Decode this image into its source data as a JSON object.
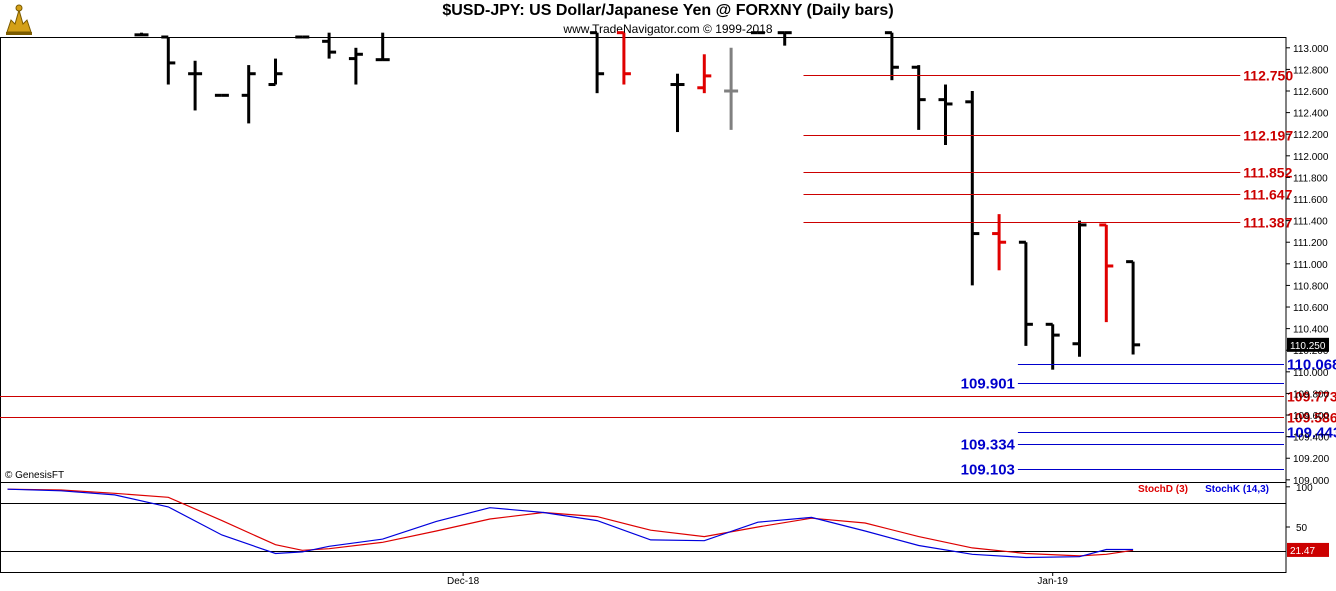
{
  "header": {
    "title": "$USD-JPY:  US Dollar/Japanese Yen @ FORXNY  (Daily bars)",
    "subtitle": "www.TradeNavigator.com © 1999-2018",
    "logo_icon": "trade-navigator-bull-logo"
  },
  "copyright": "© GenesisFT",
  "colors": {
    "up_bar": "#000000",
    "down_bar": "#e00000",
    "neutral_bar": "#808080",
    "resistance": "#cc0000",
    "support": "#0000cc",
    "stoch_d": "#dd0000",
    "stoch_k": "#0000dd",
    "grid": "#000000"
  },
  "chart_data": [
    {
      "type": "ohlc",
      "title": "$USD-JPY:  US Dollar/Japanese Yen @ FORXNY  (Daily bars)",
      "ylim": [
        108.98,
        113.1
      ],
      "y_ticks": [
        "113.000",
        "112.800",
        "112.600",
        "112.400",
        "112.200",
        "112.000",
        "111.800",
        "111.600",
        "111.400",
        "111.200",
        "111.000",
        "110.800",
        "110.600",
        "110.400",
        "110.200",
        "110.000",
        "109.800",
        "109.600",
        "109.400",
        "109.200",
        "109.000"
      ],
      "last_price": "110.250",
      "x_labels": [
        {
          "label": "Dec-18",
          "index": 17
        },
        {
          "label": "Jan-19",
          "index": 39
        }
      ],
      "bars": [
        {
          "i": 5,
          "open": 113.12,
          "high": 113.14,
          "low": 113.12,
          "close": 113.12,
          "color": "up"
        },
        {
          "i": 6,
          "open": 113.1,
          "high": 113.1,
          "low": 112.66,
          "close": 112.86,
          "color": "up"
        },
        {
          "i": 7,
          "open": 112.76,
          "high": 112.88,
          "low": 112.42,
          "close": 112.76,
          "color": "up"
        },
        {
          "i": 8,
          "open": 112.56,
          "high": 112.56,
          "low": 112.56,
          "close": 112.56,
          "color": "up"
        },
        {
          "i": 9,
          "open": 112.56,
          "high": 112.84,
          "low": 112.3,
          "close": 112.76,
          "color": "up"
        },
        {
          "i": 10,
          "open": 112.66,
          "high": 112.9,
          "low": 112.66,
          "close": 112.76,
          "color": "up"
        },
        {
          "i": 11,
          "open": 113.1,
          "high": 113.1,
          "low": 113.1,
          "close": 113.1,
          "color": "up"
        },
        {
          "i": 12,
          "open": 113.06,
          "high": 113.14,
          "low": 112.9,
          "close": 112.96,
          "color": "up"
        },
        {
          "i": 13,
          "open": 112.9,
          "high": 113.0,
          "low": 112.66,
          "close": 112.94,
          "color": "up"
        },
        {
          "i": 14,
          "open": 112.89,
          "high": 113.14,
          "low": 112.88,
          "close": 112.89,
          "color": "up"
        },
        {
          "i": 22,
          "open": 113.14,
          "high": 113.14,
          "low": 112.58,
          "close": 112.76,
          "color": "up"
        },
        {
          "i": 23,
          "open": 113.14,
          "high": 113.14,
          "low": 112.66,
          "close": 112.76,
          "color": "down"
        },
        {
          "i": 25,
          "open": 112.66,
          "high": 112.76,
          "low": 112.22,
          "close": 112.66,
          "color": "up"
        },
        {
          "i": 26,
          "open": 112.63,
          "high": 112.94,
          "low": 112.58,
          "close": 112.74,
          "color": "down"
        },
        {
          "i": 27,
          "open": 112.6,
          "high": 113.0,
          "low": 112.24,
          "close": 112.6,
          "color": "neutral"
        },
        {
          "i": 28,
          "open": 113.14,
          "high": 113.14,
          "low": 113.14,
          "close": 113.14,
          "color": "up"
        },
        {
          "i": 29,
          "open": 113.14,
          "high": 113.14,
          "low": 113.02,
          "close": 113.14,
          "color": "up"
        },
        {
          "i": 33,
          "open": 113.14,
          "high": 113.14,
          "low": 112.7,
          "close": 112.82,
          "color": "up"
        },
        {
          "i": 34,
          "open": 112.82,
          "high": 112.84,
          "low": 112.24,
          "close": 112.52,
          "color": "up"
        },
        {
          "i": 35,
          "open": 112.52,
          "high": 112.66,
          "low": 112.1,
          "close": 112.48,
          "color": "up"
        },
        {
          "i": 36,
          "open": 112.5,
          "high": 112.6,
          "low": 110.8,
          "close": 111.28,
          "color": "up"
        },
        {
          "i": 37,
          "open": 111.28,
          "high": 111.46,
          "low": 110.94,
          "close": 111.2,
          "color": "down"
        },
        {
          "i": 38,
          "open": 111.2,
          "high": 111.2,
          "low": 110.24,
          "close": 110.44,
          "color": "up"
        },
        {
          "i": 39,
          "open": 110.44,
          "high": 110.44,
          "low": 110.02,
          "close": 110.34,
          "color": "up"
        },
        {
          "i": 40,
          "open": 110.26,
          "high": 111.4,
          "low": 110.14,
          "close": 111.36,
          "color": "up"
        },
        {
          "i": 41,
          "open": 111.36,
          "high": 111.36,
          "low": 110.46,
          "close": 110.98,
          "color": "down"
        },
        {
          "i": 42,
          "open": 111.02,
          "high": 111.02,
          "low": 110.16,
          "close": 110.25,
          "color": "up"
        }
      ],
      "levels": [
        {
          "value": "112.750",
          "kind": "resistance",
          "from": 30,
          "to": 46,
          "label_pos": "right"
        },
        {
          "value": "112.197",
          "kind": "resistance",
          "from": 30,
          "to": 46,
          "label_pos": "right"
        },
        {
          "value": "111.852",
          "kind": "resistance",
          "from": 30,
          "to": 46,
          "label_pos": "right"
        },
        {
          "value": "111.647",
          "kind": "resistance",
          "from": 30,
          "to": 46,
          "label_pos": "right"
        },
        {
          "value": "111.387",
          "kind": "resistance",
          "from": 30,
          "to": 46,
          "label_pos": "right"
        },
        {
          "value": "110.068",
          "kind": "support",
          "from": 38,
          "to": 52,
          "label_pos": "right"
        },
        {
          "value": "109.901",
          "kind": "support",
          "from": 38,
          "to": 52,
          "label_pos": "left"
        },
        {
          "value": "109.773",
          "kind": "resistance",
          "from": -1,
          "to": 48,
          "label_pos": "right"
        },
        {
          "value": "109.586",
          "kind": "resistance",
          "from": -1,
          "to": 49,
          "label_pos": "right"
        },
        {
          "value": "109.443",
          "kind": "support",
          "from": 38,
          "to": 52,
          "label_pos": "right"
        },
        {
          "value": "109.334",
          "kind": "support",
          "from": 38,
          "to": 52,
          "label_pos": "left"
        },
        {
          "value": "109.103",
          "kind": "support",
          "from": 38,
          "to": 52,
          "label_pos": "left"
        }
      ]
    },
    {
      "type": "line",
      "title": "Stochastic",
      "ylim": [
        -6,
        106
      ],
      "y_ticks": [
        "100",
        "50"
      ],
      "ref_lines": [
        80,
        20
      ],
      "last_value": "21.47",
      "series": [
        {
          "name": "StochD (3)",
          "color": "#dd0000",
          "x": [
            0,
            2,
            4,
            6,
            8,
            10,
            11,
            12,
            14,
            16,
            18,
            20,
            22,
            24,
            26,
            28,
            30,
            32,
            34,
            36,
            38,
            40,
            41,
            42
          ],
          "values": [
            97,
            96,
            92,
            87,
            58,
            28,
            21,
            23,
            31,
            45,
            60,
            68,
            63,
            46,
            38,
            50,
            61,
            55,
            38,
            24,
            17,
            14,
            16,
            21
          ]
        },
        {
          "name": "StochK (14,3)",
          "color": "#0000dd",
          "x": [
            0,
            2,
            4,
            6,
            8,
            10,
            11,
            12,
            14,
            16,
            18,
            20,
            22,
            24,
            26,
            28,
            30,
            32,
            34,
            36,
            38,
            40,
            41,
            42
          ],
          "values": [
            97,
            95,
            90,
            75,
            40,
            17,
            19,
            26,
            35,
            57,
            74,
            68,
            58,
            34,
            33,
            56,
            62,
            45,
            27,
            16,
            12,
            13,
            22,
            22
          ]
        }
      ]
    }
  ]
}
